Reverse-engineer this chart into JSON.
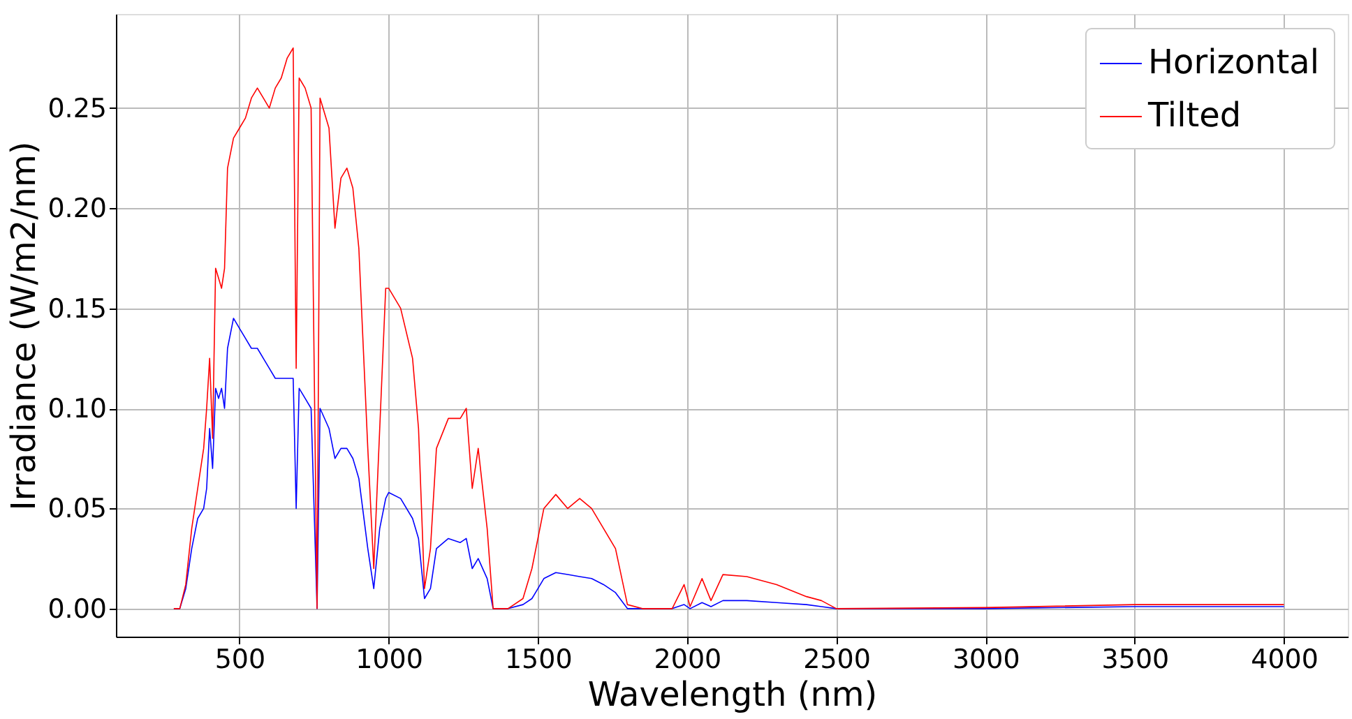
{
  "chart_data": {
    "type": "line",
    "xlabel": "Wavelength (nm)",
    "ylabel": "Irradiance (W/m2/nm)",
    "x": [
      280,
      300,
      320,
      340,
      360,
      380,
      390,
      400,
      410,
      420,
      430,
      440,
      450,
      460,
      480,
      500,
      520,
      540,
      560,
      580,
      600,
      620,
      640,
      660,
      680,
      690,
      700,
      720,
      740,
      760,
      770,
      800,
      820,
      840,
      860,
      880,
      900,
      930,
      950,
      970,
      990,
      1000,
      1040,
      1080,
      1100,
      1120,
      1140,
      1160,
      1200,
      1240,
      1260,
      1280,
      1300,
      1330,
      1350,
      1400,
      1450,
      1480,
      1520,
      1560,
      1600,
      1640,
      1680,
      1720,
      1760,
      1800,
      1850,
      1950,
      1990,
      2010,
      2050,
      2080,
      2120,
      2200,
      2300,
      2400,
      2450,
      2500,
      3000,
      3500,
      4000
    ],
    "series": [
      {
        "name": "Horizontal",
        "color": "#0000ff",
        "values": [
          0,
          0,
          0.01,
          0.03,
          0.045,
          0.05,
          0.06,
          0.09,
          0.07,
          0.11,
          0.105,
          0.11,
          0.1,
          0.13,
          0.145,
          0.14,
          0.135,
          0.13,
          0.13,
          0.125,
          0.12,
          0.115,
          0.115,
          0.115,
          0.115,
          0.05,
          0.11,
          0.105,
          0.1,
          0,
          0.1,
          0.09,
          0.075,
          0.08,
          0.08,
          0.075,
          0.065,
          0.03,
          0.01,
          0.04,
          0.055,
          0.058,
          0.055,
          0.045,
          0.035,
          0.005,
          0.01,
          0.03,
          0.035,
          0.033,
          0.035,
          0.02,
          0.025,
          0.015,
          0,
          0,
          0.002,
          0.005,
          0.015,
          0.018,
          0.017,
          0.016,
          0.015,
          0.012,
          0.008,
          0,
          0,
          0,
          0.002,
          0,
          0.003,
          0.001,
          0.004,
          0.004,
          0.003,
          0.002,
          0.001,
          0,
          0,
          0.001,
          0.001
        ]
      },
      {
        "name": "Tilted",
        "color": "#ff0000",
        "values": [
          0,
          0,
          0.012,
          0.04,
          0.06,
          0.08,
          0.1,
          0.125,
          0.085,
          0.17,
          0.165,
          0.16,
          0.17,
          0.22,
          0.235,
          0.24,
          0.245,
          0.255,
          0.26,
          0.255,
          0.25,
          0.26,
          0.265,
          0.275,
          0.28,
          0.12,
          0.265,
          0.26,
          0.25,
          0,
          0.255,
          0.24,
          0.19,
          0.215,
          0.22,
          0.21,
          0.18,
          0.08,
          0.02,
          0.09,
          0.16,
          0.16,
          0.15,
          0.125,
          0.09,
          0.01,
          0.03,
          0.08,
          0.095,
          0.095,
          0.1,
          0.06,
          0.08,
          0.04,
          0,
          0,
          0.005,
          0.02,
          0.05,
          0.057,
          0.05,
          0.055,
          0.05,
          0.04,
          0.03,
          0.002,
          0,
          0,
          0.012,
          0.001,
          0.015,
          0.004,
          0.017,
          0.016,
          0.012,
          0.006,
          0.004,
          0,
          0.0005,
          0.002,
          0.002
        ]
      }
    ],
    "xlim": [
      86,
      4214
    ],
    "ylim": [
      -0.014,
      0.297
    ],
    "xticks": [
      500,
      1000,
      1500,
      2000,
      2500,
      3000,
      3500,
      4000
    ],
    "yticks": [
      {
        "value": 0,
        "label": "0.00"
      },
      {
        "value": 0.05,
        "label": "0.05"
      },
      {
        "value": 0.1,
        "label": "0.10"
      },
      {
        "value": 0.15,
        "label": "0.15"
      },
      {
        "value": 0.2,
        "label": "0.20"
      },
      {
        "value": 0.25,
        "label": "0.25"
      }
    ],
    "grid": true,
    "legend": "top right"
  }
}
